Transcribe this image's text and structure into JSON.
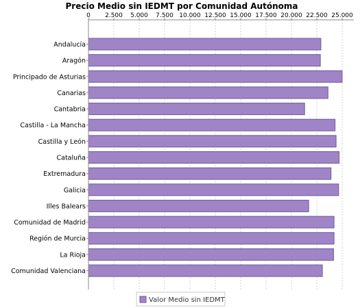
{
  "chart_data": {
    "type": "bar",
    "orientation": "horizontal",
    "title": "Precio Medio sin IEDMT por Comunidad Autónoma",
    "categories": [
      "Andalucía",
      "Aragón",
      "Principado de Asturias",
      "Canarias",
      "Cantabria",
      "Castilla - La Mancha",
      "Castilla y León",
      "Cataluña",
      "Extremadura",
      "Galicia",
      "Illes Balears",
      "Comunidad de Madrid",
      "Región de Murcia",
      "La Rioja",
      "Comunidad Valenciana"
    ],
    "series": [
      {
        "name": "Valor Medio sin IEDMT",
        "values": [
          22900,
          22850,
          25000,
          23600,
          21300,
          24300,
          24400,
          24700,
          23900,
          24650,
          21700,
          24200,
          24200,
          24150,
          23050
        ]
      }
    ],
    "ticks": [
      "0",
      "2.500",
      "5.000",
      "7.500",
      "10.000",
      "12.500",
      "15.000",
      "17.500",
      "20.000",
      "22.500",
      "25.000"
    ],
    "xlim": [
      0,
      26500
    ],
    "x_axis_position": "top",
    "grid": true,
    "legend_position": "bottom-center",
    "bar_color": "#a084c8",
    "bar_stroke": "#6e5a96"
  }
}
